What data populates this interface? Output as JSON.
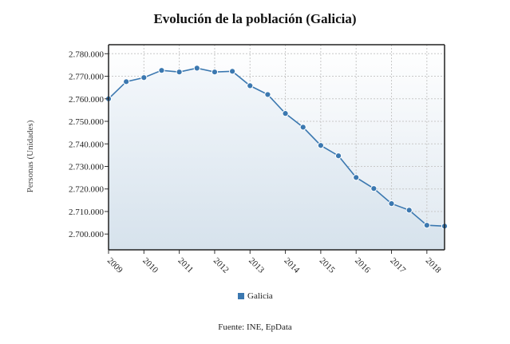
{
  "chart_data": {
    "type": "line",
    "title": "Evolución de la población (Galicia)",
    "ylabel": "Personas (Unidades)",
    "xlabel": "",
    "x_ticks": [
      "2009",
      "2010",
      "2011",
      "2012",
      "2013",
      "2014",
      "2015",
      "2016",
      "2017",
      "2018"
    ],
    "y_ticks": [
      "2.700.000",
      "2.710.000",
      "2.720.000",
      "2.730.000",
      "2.740.000",
      "2.750.000",
      "2.760.000",
      "2.770.000",
      "2.780.000"
    ],
    "y_tick_values": [
      2700000,
      2710000,
      2720000,
      2730000,
      2740000,
      2750000,
      2760000,
      2770000,
      2780000
    ],
    "ylim": [
      2693000,
      2784000
    ],
    "xlim": [
      2009,
      2018.5
    ],
    "grid": true,
    "legend_position": "bottom",
    "series": [
      {
        "name": "Galicia",
        "color": "#3b78b0",
        "x": [
          2009,
          2009.5,
          2010,
          2010.5,
          2011,
          2011.5,
          2012,
          2012.5,
          2013,
          2013.5,
          2014,
          2014.5,
          2015,
          2015.5,
          2016,
          2016.5,
          2017,
          2017.5,
          2018,
          2018.5
        ],
        "values": [
          2760000,
          2767600,
          2769400,
          2772600,
          2771900,
          2773600,
          2771900,
          2772200,
          2765800,
          2761900,
          2753500,
          2747400,
          2739300,
          2734700,
          2725100,
          2720200,
          2713500,
          2710600,
          2703900,
          2703500
        ]
      }
    ],
    "source": "Fuente: INE, EpData"
  }
}
